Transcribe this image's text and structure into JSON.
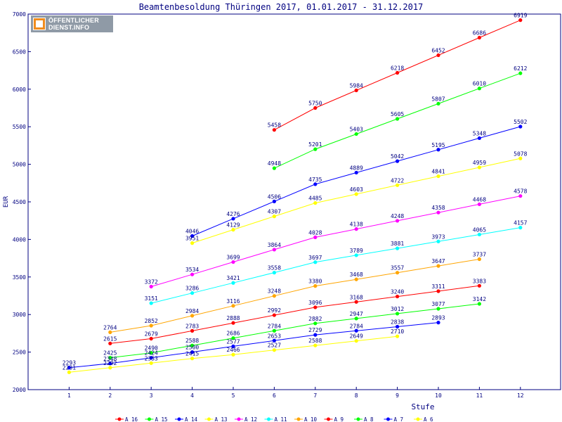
{
  "logo": {
    "line1": "ÖFFENTLICHER",
    "line2": "DIENST.INFO"
  },
  "chart_data": {
    "type": "line",
    "title": "Beamtenbesoldung Thüringen 2017, 01.01.2017 - 31.12.2017",
    "xlabel": "Stufe",
    "ylabel": "EUR",
    "xlim": [
      0,
      13
    ],
    "ylim": [
      2000,
      7000
    ],
    "x_ticks": [
      1,
      2,
      3,
      4,
      5,
      6,
      7,
      8,
      9,
      10,
      11,
      12
    ],
    "y_ticks": [
      2000,
      2500,
      3000,
      3500,
      4000,
      4500,
      5000,
      5500,
      6000,
      6500,
      7000
    ],
    "grid": false,
    "legend_position": "bottom",
    "series": [
      {
        "name": "A_16",
        "color": "#ff0000",
        "x": [
          6,
          7,
          8,
          9,
          10,
          11,
          12
        ],
        "values": [
          5458,
          5750,
          5984,
          6218,
          6452,
          6686,
          6919
        ]
      },
      {
        "name": "A_15",
        "color": "#00ff00",
        "x": [
          6,
          7,
          8,
          9,
          10,
          11,
          12
        ],
        "values": [
          4948,
          5201,
          5403,
          5605,
          5807,
          6010,
          6212
        ]
      },
      {
        "name": "A_14",
        "color": "#0000ff",
        "x": [
          4,
          5,
          6,
          7,
          8,
          9,
          10,
          11,
          12
        ],
        "values": [
          4046,
          4276,
          4506,
          4735,
          4889,
          5042,
          5195,
          5348,
          5502
        ]
      },
      {
        "name": "A_13",
        "color": "#ffff00",
        "x": [
          4,
          5,
          6,
          7,
          8,
          9,
          10,
          11,
          12
        ],
        "values": [
          3951,
          4129,
          4307,
          4485,
          4603,
          4722,
          4841,
          4959,
          5078
        ]
      },
      {
        "name": "A_12",
        "color": "#ff00ff",
        "x": [
          3,
          4,
          5,
          6,
          7,
          8,
          9,
          10,
          11,
          12
        ],
        "values": [
          3372,
          3534,
          3699,
          3864,
          4028,
          4138,
          4248,
          4358,
          4468,
          4578
        ]
      },
      {
        "name": "A_11",
        "color": "#00ffff",
        "x": [
          3,
          4,
          5,
          6,
          7,
          8,
          9,
          10,
          11,
          12
        ],
        "values": [
          3151,
          3286,
          3421,
          3558,
          3697,
          3789,
          3881,
          3973,
          4065,
          4157
        ]
      },
      {
        "name": "A_10",
        "color": "#ffa500",
        "x": [
          2,
          3,
          4,
          5,
          6,
          7,
          8,
          9,
          10,
          11
        ],
        "values": [
          2764,
          2852,
          2984,
          3116,
          3248,
          3380,
          3468,
          3557,
          3647,
          3737
        ]
      },
      {
        "name": "A_9",
        "color": "#ff0000",
        "x": [
          2,
          3,
          4,
          5,
          6,
          7,
          8,
          9,
          10,
          11
        ],
        "values": [
          2615,
          2679,
          2783,
          2888,
          2992,
          3096,
          3168,
          3240,
          3311,
          3383
        ]
      },
      {
        "name": "A_8",
        "color": "#00ff00",
        "x": [
          2,
          3,
          4,
          5,
          6,
          7,
          8,
          9,
          10,
          11
        ],
        "values": [
          2425,
          2490,
          2588,
          2686,
          2784,
          2882,
          2947,
          3012,
          3077,
          3142
        ]
      },
      {
        "name": "A_7",
        "color": "#0000ff",
        "x": [
          1,
          2,
          3,
          4,
          5,
          6,
          7,
          8,
          9,
          10
        ],
        "values": [
          2293,
          2348,
          2424,
          2500,
          2577,
          2653,
          2729,
          2784,
          2838,
          2893
        ]
      },
      {
        "name": "A_6",
        "color": "#ffff00",
        "x": [
          1,
          2,
          3,
          4,
          5,
          6,
          7,
          8,
          9
        ],
        "values": [
          2231,
          2292,
          2353,
          2415,
          2466,
          2527,
          2588,
          2649,
          2710
        ]
      }
    ]
  }
}
